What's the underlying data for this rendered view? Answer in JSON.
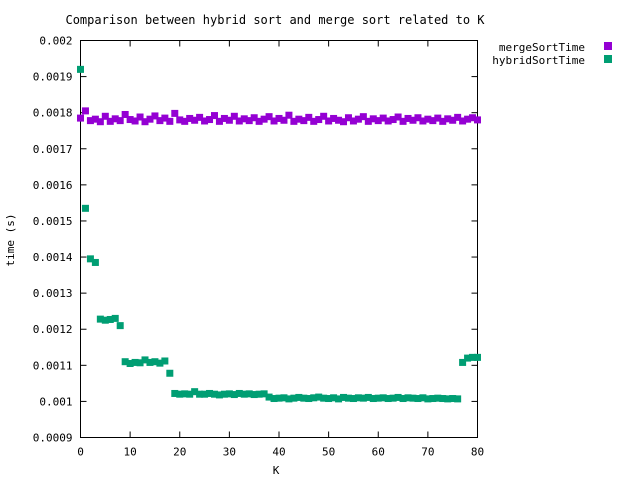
{
  "chart_data": {
    "type": "scatter",
    "title": "Comparison between hybrid sort and merge sort related to K",
    "xlabel": "K",
    "ylabel": "time (s)",
    "xlim": [
      0,
      80
    ],
    "ylim": [
      0.0009,
      0.002
    ],
    "xticks": [
      "0",
      "10",
      "20",
      "30",
      "40",
      "50",
      "60",
      "70",
      "80"
    ],
    "yticks": [
      "0.0009",
      "0.001",
      "0.0011",
      "0.0012",
      "0.0013",
      "0.0014",
      "0.0015",
      "0.0016",
      "0.0017",
      "0.0018",
      "0.0019",
      "0.002"
    ],
    "grid": false,
    "legend_position": "top-right, outside plot",
    "x": [
      0,
      1,
      2,
      3,
      4,
      5,
      6,
      7,
      8,
      9,
      10,
      11,
      12,
      13,
      14,
      15,
      16,
      17,
      18,
      19,
      20,
      21,
      22,
      23,
      24,
      25,
      26,
      27,
      28,
      29,
      30,
      31,
      32,
      33,
      34,
      35,
      36,
      37,
      38,
      39,
      40,
      41,
      42,
      43,
      44,
      45,
      46,
      47,
      48,
      49,
      50,
      51,
      52,
      53,
      54,
      55,
      56,
      57,
      58,
      59,
      60,
      61,
      62,
      63,
      64,
      65,
      66,
      67,
      68,
      69,
      70,
      71,
      72,
      73,
      74,
      75,
      76,
      77,
      78,
      79,
      80
    ],
    "series": [
      {
        "name": "mergeSortTime",
        "color": "#9400d3",
        "values": [
          0.001785,
          0.001805,
          0.001778,
          0.001782,
          0.001775,
          0.00179,
          0.001776,
          0.001783,
          0.001778,
          0.001795,
          0.001781,
          0.001777,
          0.001788,
          0.001775,
          0.001782,
          0.001791,
          0.001778,
          0.001785,
          0.001776,
          0.001798,
          0.00178,
          0.001776,
          0.001784,
          0.001779,
          0.001787,
          0.001777,
          0.001781,
          0.001792,
          0.001776,
          0.001784,
          0.001779,
          0.00179,
          0.001777,
          0.001783,
          0.001778,
          0.001786,
          0.001776,
          0.001782,
          0.001789,
          0.001777,
          0.001784,
          0.001779,
          0.001793,
          0.001776,
          0.001782,
          0.001778,
          0.001787,
          0.001776,
          0.001781,
          0.00179,
          0.001777,
          0.001784,
          0.001779,
          0.001775,
          0.001786,
          0.001777,
          0.001782,
          0.001789,
          0.001776,
          0.001783,
          0.001778,
          0.001785,
          0.001777,
          0.001781,
          0.001788,
          0.001776,
          0.001784,
          0.001779,
          0.001786,
          0.001777,
          0.001782,
          0.001778,
          0.001785,
          0.001776,
          0.001783,
          0.001779,
          0.001787,
          0.001777,
          0.001782,
          0.001786,
          0.00178
        ]
      },
      {
        "name": "hybridSortTime",
        "color": "#009e73",
        "values": [
          0.00192,
          0.001535,
          0.001395,
          0.001385,
          0.001228,
          0.001225,
          0.001227,
          0.00123,
          0.00121,
          0.00111,
          0.001105,
          0.001108,
          0.001107,
          0.001115,
          0.001108,
          0.00111,
          0.001106,
          0.001112,
          0.001078,
          0.001022,
          0.00102,
          0.001021,
          0.00102,
          0.001027,
          0.00102,
          0.00102,
          0.001022,
          0.00102,
          0.001018,
          0.00102,
          0.001021,
          0.001019,
          0.001022,
          0.00102,
          0.001021,
          0.001019,
          0.00102,
          0.001021,
          0.001012,
          0.001008,
          0.001009,
          0.00101,
          0.001007,
          0.001009,
          0.001011,
          0.001009,
          0.001008,
          0.00101,
          0.001012,
          0.001009,
          0.001008,
          0.00101,
          0.001007,
          0.001011,
          0.001009,
          0.001008,
          0.00101,
          0.001009,
          0.001011,
          0.001008,
          0.001009,
          0.00101,
          0.001008,
          0.001009,
          0.001011,
          0.001008,
          0.00101,
          0.001009,
          0.001008,
          0.00101,
          0.001007,
          0.001008,
          0.001009,
          0.001008,
          0.001007,
          0.001008,
          0.001007,
          0.001108,
          0.00112,
          0.001122,
          0.001122
        ]
      }
    ]
  }
}
